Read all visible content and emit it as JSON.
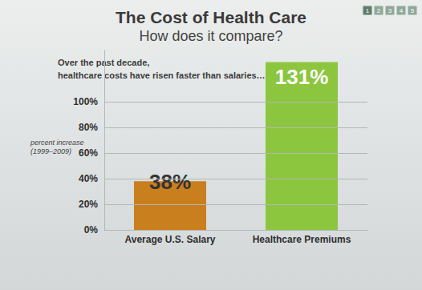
{
  "chart_data": {
    "type": "bar",
    "title": "The Cost of Health Care",
    "subtitle": "How does it compare?",
    "annotations": [
      "Over the past decade,",
      "healthcare costs have risen faster than salaries…"
    ],
    "page_tabs": [
      "1",
      "2",
      "3",
      "4",
      "5"
    ],
    "ylabel": "percent increase\n(1999–2009)",
    "categories": [
      "Average U.S. Salary",
      "Healthcare Premiums"
    ],
    "values": [
      38,
      131
    ],
    "value_labels": [
      "38%",
      "131%"
    ],
    "colors": [
      "#c97f1d",
      "#8cc63f"
    ],
    "ylim": [
      0,
      140
    ],
    "yticks": [
      {
        "value": 0,
        "label": "0%"
      },
      {
        "value": 20,
        "label": "20%"
      },
      {
        "value": 40,
        "label": "40%"
      },
      {
        "value": 60,
        "label": "60%"
      },
      {
        "value": 80,
        "label": "80%"
      },
      {
        "value": 100,
        "label": "100%"
      }
    ],
    "grid": true,
    "data_labels": true
  }
}
